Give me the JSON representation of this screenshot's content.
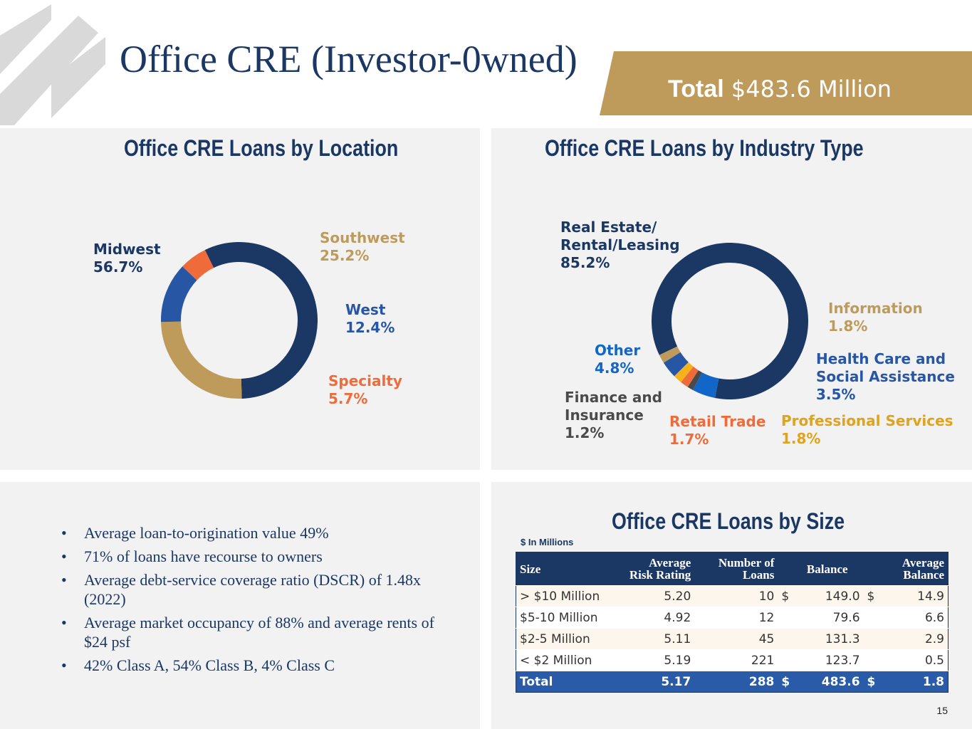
{
  "title": "Office CRE (Investor-0wned)",
  "total": {
    "label": "Total",
    "value": "$483.6 Million"
  },
  "colors": {
    "navy": "#1b3764",
    "gold": "#bf9b5b",
    "blue": "#2756a5",
    "orange": "#ef6b3a",
    "brightblue": "#1266c8",
    "gray": "#4a4a4a",
    "yellow": "#f5b21b",
    "panel": "#f2f2f2"
  },
  "location_title": "Office CRE Loans by Location",
  "industry_title": "Office CRE Loans by Industry Type",
  "size_title": "Office CRE Loans by Size",
  "chart_data": [
    {
      "type": "pie",
      "title": "Office CRE Loans by Location",
      "series": [
        {
          "name": "Midwest",
          "value": 56.7,
          "label": "56.7%",
          "color": "#1b3764"
        },
        {
          "name": "Southwest",
          "value": 25.2,
          "label": "25.2%",
          "color": "#bf9b5b"
        },
        {
          "name": "West",
          "value": 12.4,
          "label": "12.4%",
          "color": "#2756a5"
        },
        {
          "name": "Specialty",
          "value": 5.7,
          "label": "5.7%",
          "color": "#ef6b3a"
        }
      ]
    },
    {
      "type": "pie",
      "title": "Office CRE Loans by Industry Type",
      "series": [
        {
          "name": "Real Estate/ Rental/Leasing",
          "line1": "Real Estate/",
          "line2": "Rental/Leasing",
          "value": 85.2,
          "label": "85.2%",
          "color": "#1b3764"
        },
        {
          "name": "Information",
          "value": 1.8,
          "label": "1.8%",
          "color": "#bf9b5b"
        },
        {
          "name": "Health Care and Social Assistance",
          "line1": "Health Care and",
          "line2": "Social Assistance",
          "value": 3.5,
          "label": "3.5%",
          "color": "#2756a5"
        },
        {
          "name": "Professional Services",
          "value": 1.8,
          "label": "1.8%",
          "color": "#f5b21b"
        },
        {
          "name": "Retail Trade",
          "value": 1.7,
          "label": "1.7%",
          "color": "#ef6b3a"
        },
        {
          "name": "Finance and Insurance",
          "line1": "Finance and",
          "line2": "Insurance",
          "value": 1.2,
          "label": "1.2%",
          "color": "#4a4a4a"
        },
        {
          "name": "Other",
          "value": 4.8,
          "label": "4.8%",
          "color": "#1266c8"
        }
      ]
    },
    {
      "type": "table",
      "title": "Office CRE Loans by Size",
      "note": "$ In Millions",
      "headers": {
        "size": "Size",
        "risk1": "Average",
        "risk2": "Risk Rating",
        "num1": "Number of",
        "num2": "Loans",
        "bal": "Balance",
        "avg1": "Average",
        "avg2": "Balance"
      },
      "rows": [
        {
          "size": "> $10 Million",
          "risk": "5.20",
          "loans": "10",
          "cur1": "$",
          "balance": "149.0",
          "cur2": "$",
          "avg": "14.9"
        },
        {
          "size": "$5-10 Million",
          "risk": "4.92",
          "loans": "12",
          "cur1": "",
          "balance": "79.6",
          "cur2": "",
          "avg": "6.6"
        },
        {
          "size": "$2-5 Million",
          "risk": "5.11",
          "loans": "45",
          "cur1": "",
          "balance": "131.3",
          "cur2": "",
          "avg": "2.9"
        },
        {
          "size": "< $2 Million",
          "risk": "5.19",
          "loans": "221",
          "cur1": "",
          "balance": "123.7",
          "cur2": "",
          "avg": "0.5"
        }
      ],
      "total": {
        "size": "Total",
        "risk": "5.17",
        "loans": "288",
        "cur1": "$",
        "balance": "483.6",
        "cur2": "$",
        "avg": "1.8"
      }
    }
  ],
  "bullets": [
    "Average loan-to-origination value 49%",
    "71% of loans have recourse to owners",
    "Average debt-service coverage ratio (DSCR) of 1.48x (2022)",
    "Average market occupancy of 88% and average rents of $24 psf",
    "42% Class A, 54% Class B, 4% Class C"
  ],
  "page_number": "15"
}
